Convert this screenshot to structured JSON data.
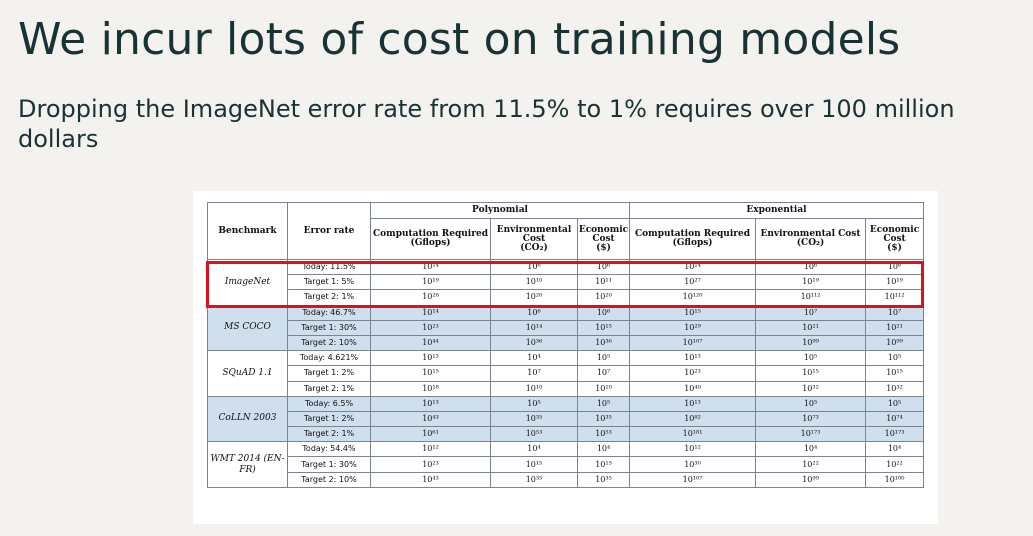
{
  "title": "We incur lots of cost on training models",
  "subtitle": "Dropping the ImageNet error rate from 11.5% to 1% requires over 100 million dollars",
  "accent_color": "#e0101a",
  "shade_color": "#cfdfee",
  "table": {
    "group_headers": {
      "polynomial": "Polynomial",
      "exponential": "Exponential"
    },
    "col_headers": {
      "benchmark": "Benchmark",
      "error_rate": "Error rate",
      "computation": "Computation Required",
      "computation_unit": "(Gflops)",
      "environmental": "Environmental Cost",
      "environmental_unit": "(CO₂)",
      "economic": "Economic Cost",
      "economic_unit": "($)"
    },
    "benchmarks": [
      {
        "name": "ImageNet",
        "highlighted": true,
        "shaded": false,
        "rows": [
          {
            "error": "Today: 11.5%",
            "p_comp": "10¹⁴",
            "p_env": "10⁶",
            "p_econ": "10⁶",
            "e_comp": "10¹⁴",
            "e_env": "10⁶",
            "e_econ": "10⁶"
          },
          {
            "error": "Target 1: 5%",
            "p_comp": "10¹⁹",
            "p_env": "10¹⁰",
            "p_econ": "10¹¹",
            "e_comp": "10²⁷",
            "e_env": "10¹⁹",
            "e_econ": "10¹⁹"
          },
          {
            "error": "Target 2: 1%",
            "p_comp": "10²⁸",
            "p_env": "10²⁰",
            "p_econ": "10²⁰",
            "e_comp": "10¹²⁰",
            "e_env": "10¹¹²",
            "e_econ": "10¹¹²"
          }
        ]
      },
      {
        "name": "MS COCO",
        "highlighted": false,
        "shaded": true,
        "rows": [
          {
            "error": "Today: 46.7%",
            "p_comp": "10¹⁴",
            "p_env": "10⁶",
            "p_econ": "10⁶",
            "e_comp": "10¹⁵",
            "e_env": "10⁷",
            "e_econ": "10⁷"
          },
          {
            "error": "Target 1: 30%",
            "p_comp": "10²³",
            "p_env": "10¹⁴",
            "p_econ": "10¹⁵",
            "e_comp": "10²⁹",
            "e_env": "10²¹",
            "e_econ": "10²¹"
          },
          {
            "error": "Target 2: 10%",
            "p_comp": "10⁴⁴",
            "p_env": "10³⁶",
            "p_econ": "10³⁶",
            "e_comp": "10¹⁰⁷",
            "e_env": "10⁹⁹",
            "e_econ": "10⁹⁹"
          }
        ]
      },
      {
        "name": "SQuAD 1.1",
        "highlighted": false,
        "shaded": false,
        "rows": [
          {
            "error": "Today: 4.621%",
            "p_comp": "10¹³",
            "p_env": "10⁴",
            "p_econ": "10⁵",
            "e_comp": "10¹³",
            "e_env": "10⁵",
            "e_econ": "10⁵"
          },
          {
            "error": "Target 1: 2%",
            "p_comp": "10¹⁵",
            "p_env": "10⁷",
            "p_econ": "10⁷",
            "e_comp": "10²³",
            "e_env": "10¹⁵",
            "e_econ": "10¹⁵"
          },
          {
            "error": "Target 2: 1%",
            "p_comp": "10¹⁸",
            "p_env": "10¹⁰",
            "p_econ": "10¹⁰",
            "e_comp": "10⁴⁰",
            "e_env": "10³²",
            "e_econ": "10³²"
          }
        ]
      },
      {
        "name": "CoLLN 2003",
        "highlighted": false,
        "shaded": true,
        "rows": [
          {
            "error": "Today: 6.5%",
            "p_comp": "10¹³",
            "p_env": "10⁵",
            "p_econ": "10⁵",
            "e_comp": "10¹³",
            "e_env": "10⁵",
            "e_econ": "10⁵"
          },
          {
            "error": "Target 1: 2%",
            "p_comp": "10⁴³",
            "p_env": "10³⁵",
            "p_econ": "10³⁵",
            "e_comp": "10⁸²",
            "e_env": "10⁷³",
            "e_econ": "10⁷⁴"
          },
          {
            "error": "Target 2: 1%",
            "p_comp": "10⁶¹",
            "p_env": "10⁵³",
            "p_econ": "10⁵³",
            "e_comp": "10¹⁸¹",
            "e_env": "10¹⁷³",
            "e_econ": "10¹⁷³"
          }
        ]
      },
      {
        "name": "WMT 2014 (EN-FR)",
        "highlighted": false,
        "shaded": false,
        "rows": [
          {
            "error": "Today: 54.4%",
            "p_comp": "10¹²",
            "p_env": "10⁴",
            "p_econ": "10⁴",
            "e_comp": "10¹²",
            "e_env": "10⁴",
            "e_econ": "10⁴"
          },
          {
            "error": "Target 1: 30%",
            "p_comp": "10²³",
            "p_env": "10¹⁵",
            "p_econ": "10¹⁵",
            "e_comp": "10³⁰",
            "e_env": "10²²",
            "e_econ": "10²²"
          },
          {
            "error": "Target 2: 10%",
            "p_comp": "10⁴³",
            "p_env": "10³⁵",
            "p_econ": "10³⁵",
            "e_comp": "10¹⁰⁷",
            "e_env": "10⁹⁹",
            "e_econ": "10¹⁰⁰"
          }
        ]
      }
    ]
  }
}
